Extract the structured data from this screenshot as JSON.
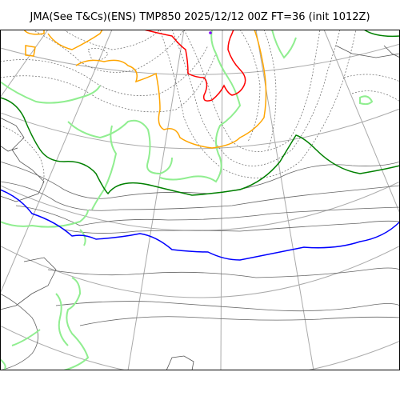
{
  "figure": {
    "title": "JMA(See T&Cs)(ENS) TMP850 2025/12/12 00Z FT=36 (init 1012Z)"
  },
  "map": {
    "colors": {
      "background": "#ffffff",
      "graticule": "#aaaaaa",
      "coastline": "#555555",
      "contour_gray": "#666666",
      "precip_green": "#90ee90",
      "temp_dark_green": "#008000",
      "temp_blue": "#0000ff",
      "temp_orange": "#ffa500",
      "temp_red": "#ff0000",
      "marker_purple": "#8000ff"
    },
    "layers": [
      "graticule",
      "coastlines",
      "dotted-contours",
      "solid-contours",
      "precip-green-lines",
      "temperature-isotherms"
    ]
  }
}
